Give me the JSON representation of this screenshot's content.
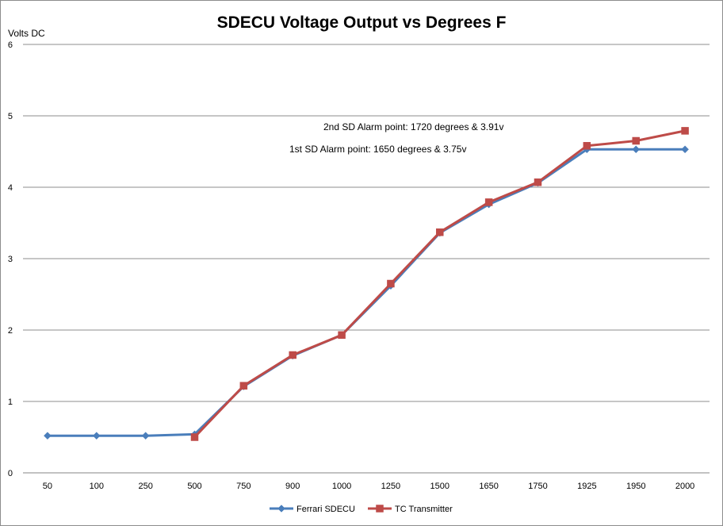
{
  "chart_data": {
    "type": "line",
    "title": "SDECU Voltage Output vs Degrees F",
    "ylabel": "Volts DC",
    "xlabel": "",
    "categories": [
      "50",
      "100",
      "250",
      "500",
      "750",
      "900",
      "1000",
      "1250",
      "1500",
      "1650",
      "1750",
      "1925",
      "1950",
      "2000"
    ],
    "ylim": [
      0,
      6
    ],
    "yticks": [
      0,
      1,
      2,
      3,
      4,
      5,
      6
    ],
    "grid": "horizontal",
    "legend_position": "bottom",
    "series": [
      {
        "name": "Ferrari SDECU",
        "color": "#4a7ebb",
        "marker": "diamond",
        "values": [
          0.52,
          0.52,
          0.52,
          0.54,
          1.21,
          1.64,
          1.93,
          2.62,
          3.36,
          3.76,
          4.06,
          4.53,
          4.53,
          4.53
        ]
      },
      {
        "name": "TC Transmitter",
        "color": "#be4b48",
        "marker": "square",
        "values": [
          null,
          null,
          null,
          0.5,
          1.22,
          1.65,
          1.93,
          2.65,
          3.37,
          3.79,
          4.07,
          4.58,
          4.65,
          4.79
        ]
      }
    ],
    "annotations": [
      "2nd SD Alarm point: 1720  degrees & 3.91v",
      "1st SD Alarm point: 1650  degrees & 3.75v"
    ]
  }
}
